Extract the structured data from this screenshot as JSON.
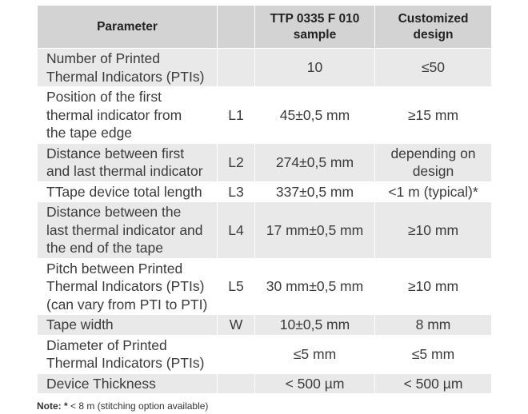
{
  "table": {
    "headers": {
      "parameter": "Parameter",
      "symbol": "",
      "sample": "TTP 0335 F 010\nsample",
      "customized": "Customized\ndesign"
    },
    "rows": [
      {
        "parameter": "Number of Printed\nThermal Indicators (PTIs)",
        "symbol": "",
        "sample": "10",
        "customized": "≤50"
      },
      {
        "parameter": "Position of the first\nthermal indicator from\nthe tape edge",
        "symbol": "L1",
        "sample": "45±0,5 mm",
        "customized": "≥15 mm"
      },
      {
        "parameter": "Distance between first\nand last thermal indicator",
        "symbol": "L2",
        "sample": "274±0,5 mm",
        "customized": "depending on\ndesign"
      },
      {
        "parameter": "TTape device total length",
        "symbol": "L3",
        "sample": "337±0,5 mm",
        "customized": "<1 m (typical)*"
      },
      {
        "parameter": "Distance between the\nlast thermal indicator and\nthe end of the tape",
        "symbol": "L4",
        "sample": "17 mm±0,5 mm",
        "customized": "≥10 mm"
      },
      {
        "parameter": "Pitch between Printed\nThermal Indicators (PTIs)\n(can vary from PTI to PTI)",
        "symbol": "L5",
        "sample": "30 mm±0,5 mm",
        "customized": "≥10 mm"
      },
      {
        "parameter": "Tape width",
        "symbol": "W",
        "sample": "10±0,5 mm",
        "customized": "8 mm"
      },
      {
        "parameter": "Diameter of Printed\nThermal Indicators (PTIs)",
        "symbol": "",
        "sample": "≤5 mm",
        "customized": "≤5 mm"
      },
      {
        "parameter": "Device Thickness",
        "symbol": "",
        "sample": "< 500 µm",
        "customized": "< 500 µm"
      }
    ]
  },
  "note": {
    "label": "Note: *",
    "text": " < 8 m (stitching option available)"
  },
  "colors": {
    "header_background": "#d3d3d3",
    "shaded_row_background": "#e9e9e9",
    "text": "#3b3b3b"
  }
}
